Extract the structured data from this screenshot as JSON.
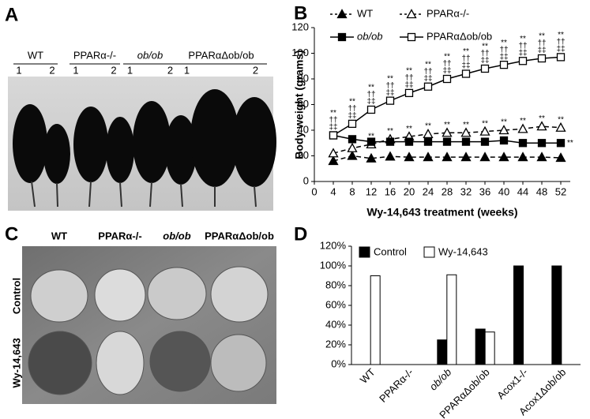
{
  "photo_a": {
    "panel_label": "A",
    "groups": [
      {
        "name": "WT",
        "samples": [
          "1",
          "2"
        ]
      },
      {
        "name": "PPARα-/-",
        "samples": [
          "1",
          "2"
        ]
      },
      {
        "name": "ob/ob",
        "samples": [
          "1",
          "2"
        ]
      },
      {
        "name": "PPARαΔob/ob",
        "samples": [
          "1",
          "2"
        ]
      }
    ]
  },
  "photo_c": {
    "panel_label": "C",
    "columns": [
      "WT",
      "PPARα-/-",
      "ob/ob",
      "PPARαΔob/ob"
    ],
    "rows": [
      "Control",
      "Wy-14,643"
    ]
  },
  "chart_data": [
    {
      "type": "line",
      "panel_label": "B",
      "x": [
        4,
        8,
        12,
        16,
        20,
        24,
        28,
        32,
        36,
        40,
        44,
        48,
        52
      ],
      "xlim": [
        0,
        54
      ],
      "xticks": [
        0,
        4,
        8,
        12,
        16,
        20,
        24,
        28,
        32,
        36,
        40,
        44,
        48,
        52
      ],
      "ylim": [
        0,
        120
      ],
      "yticks": [
        0,
        20,
        40,
        60,
        80,
        100,
        120
      ],
      "x_label": "Wy-14,643  treatment (weeks)",
      "y_label": "Body weight (grams)",
      "series": [
        {
          "name": "WT",
          "color": "#000000",
          "marker": "triangle",
          "filled": true,
          "line_style": "dashed",
          "values": [
            16,
            20,
            18,
            19.5,
            19,
            19,
            19,
            19,
            19,
            19,
            19,
            19,
            18.5
          ]
        },
        {
          "name": "PPARα-/-",
          "color": "#000000",
          "marker": "triangle",
          "filled": false,
          "line_style": "dashed",
          "values": [
            22,
            26,
            29,
            33,
            35,
            37,
            38,
            38,
            39,
            40,
            41,
            43,
            42
          ],
          "annotation_side": "above",
          "annotations": [
            null,
            [
              "**"
            ],
            [
              "**"
            ],
            [
              "**"
            ],
            [
              "**"
            ],
            [
              "**"
            ],
            [
              "**"
            ],
            [
              "**"
            ],
            [
              "**"
            ],
            [
              "**"
            ],
            [
              "**"
            ],
            [
              "**"
            ],
            [
              "**"
            ]
          ]
        },
        {
          "name": "ob/ob",
          "color": "#000000",
          "marker": "square",
          "filled": true,
          "line_style": "solid",
          "values": [
            36,
            33,
            31,
            31,
            31,
            31,
            31,
            31,
            31,
            32,
            30,
            30,
            30
          ],
          "annotation_side": "right",
          "annotations": [
            null,
            null,
            null,
            null,
            null,
            null,
            null,
            null,
            null,
            null,
            null,
            null,
            [
              "**"
            ]
          ]
        },
        {
          "name": "PPARαΔob/ob",
          "color": "#000000",
          "marker": "square",
          "filled": false,
          "line_style": "solid",
          "values": [
            36,
            45,
            56,
            63,
            69,
            74,
            80,
            84,
            88,
            91,
            94,
            96,
            97
          ],
          "annotation_side": "above",
          "annotations": [
            [
              "**",
              "††",
              "‡‡"
            ],
            [
              "**",
              "††",
              "‡‡"
            ],
            [
              "**",
              "††",
              "‡‡"
            ],
            [
              "**",
              "††",
              "‡‡"
            ],
            [
              "**",
              "††",
              "‡‡"
            ],
            [
              "**",
              "††",
              "‡‡"
            ],
            [
              "**",
              "††",
              "‡‡"
            ],
            [
              "**",
              "††",
              "‡‡"
            ],
            [
              "**",
              "††",
              "‡‡"
            ],
            [
              "**",
              "††",
              "‡‡"
            ],
            [
              "**",
              "††",
              "‡‡"
            ],
            [
              "**",
              "††",
              "‡‡"
            ],
            [
              "**",
              "††",
              "‡‡"
            ]
          ]
        }
      ]
    },
    {
      "type": "bar",
      "panel_label": "D",
      "categories": [
        "WT",
        "PPARα-/-",
        "ob/ob",
        "PPARαΔob/ob",
        "Acox1-/-",
        "Acox1Δob/ob"
      ],
      "ylim": [
        0,
        120
      ],
      "yticks": [
        {
          "value": 0,
          "label": "0%"
        },
        {
          "value": 20,
          "label": "20%"
        },
        {
          "value": 40,
          "label": "40%"
        },
        {
          "value": 60,
          "label": "60%"
        },
        {
          "value": 80,
          "label": "80%"
        },
        {
          "value": 100,
          "label": "100%"
        },
        {
          "value": 120,
          "label": "120%"
        }
      ],
      "series": [
        {
          "name": "Control",
          "color": "#000000",
          "values": [
            0,
            0,
            25,
            36,
            100,
            100
          ]
        },
        {
          "name": "Wy-14,643",
          "color": "#ffffff",
          "values": [
            90,
            0,
            91,
            33,
            0,
            0
          ]
        }
      ]
    }
  ]
}
